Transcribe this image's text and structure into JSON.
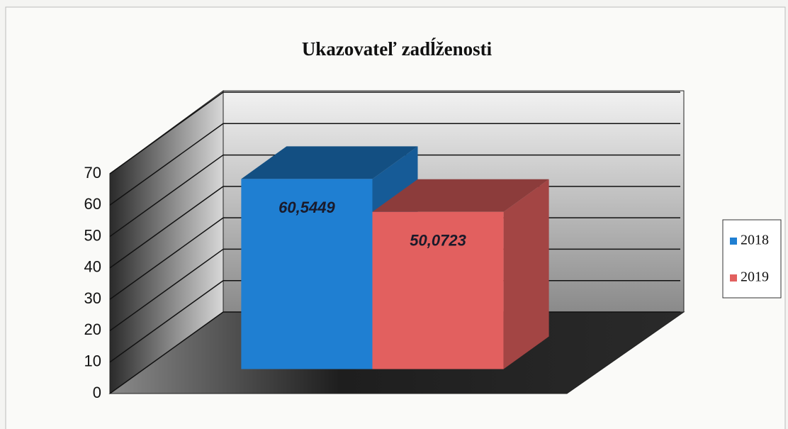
{
  "chart_data": {
    "type": "bar",
    "title": "Ukazovateľ zadĺženosti",
    "categories": [
      null
    ],
    "series": [
      {
        "name": "2018",
        "color": "#1f7fd2",
        "values": [
          60.5449
        ],
        "value_labels": [
          "60,5449"
        ]
      },
      {
        "name": "2019",
        "color": "#e2605f",
        "values": [
          50.0723
        ],
        "value_labels": [
          "50,0723"
        ]
      }
    ],
    "ylim": [
      0,
      70
    ],
    "yticks": [
      0,
      10,
      20,
      30,
      40,
      50,
      60,
      70
    ],
    "grid": true,
    "legend": "right"
  }
}
